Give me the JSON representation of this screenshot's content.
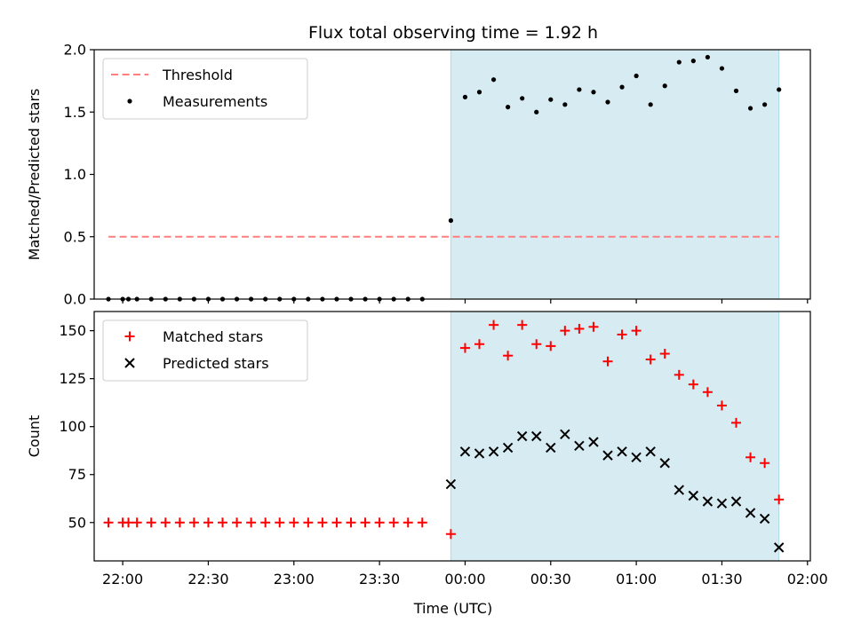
{
  "chart_data": {
    "title": "Flux total observing time = 1.92 h",
    "xlabel": "Time (UTC)",
    "x_tick_labels": [
      "22:00",
      "22:30",
      "23:00",
      "23:30",
      "00:00",
      "00:30",
      "01:00",
      "01:30",
      "02:00"
    ],
    "x_range": [
      "21:50",
      "02:01"
    ],
    "shaded_interval": {
      "start": "23:55",
      "end": "01:50",
      "color": "#add8e6"
    },
    "panels": [
      {
        "type": "scatter",
        "ylabel": "Matched/Predicted stars",
        "ylim": [
          0,
          2.0
        ],
        "y_ticks": [
          "0.0",
          "0.5",
          "1.0",
          "1.5",
          "2.0"
        ],
        "legend_position": "upper-left",
        "series": [
          {
            "name": "Threshold",
            "style": "dashed-line",
            "color": "#ff7f7f",
            "x": [
              "21:55",
              "01:50"
            ],
            "y": [
              0.5,
              0.5
            ]
          },
          {
            "name": "Measurements",
            "style": "dot",
            "color": "#000000",
            "points": [
              [
                "21:55",
                0
              ],
              [
                "22:00",
                0
              ],
              [
                "22:02",
                0
              ],
              [
                "22:05",
                0
              ],
              [
                "22:10",
                0
              ],
              [
                "22:15",
                0
              ],
              [
                "22:20",
                0
              ],
              [
                "22:25",
                0
              ],
              [
                "22:30",
                0
              ],
              [
                "22:35",
                0
              ],
              [
                "22:40",
                0
              ],
              [
                "22:45",
                0
              ],
              [
                "22:50",
                0
              ],
              [
                "22:55",
                0
              ],
              [
                "23:00",
                0
              ],
              [
                "23:05",
                0
              ],
              [
                "23:10",
                0
              ],
              [
                "23:15",
                0
              ],
              [
                "23:20",
                0
              ],
              [
                "23:25",
                0
              ],
              [
                "23:30",
                0
              ],
              [
                "23:35",
                0
              ],
              [
                "23:40",
                0
              ],
              [
                "23:45",
                0
              ],
              [
                "23:55",
                0.63
              ],
              [
                "00:00",
                1.62
              ],
              [
                "00:05",
                1.66
              ],
              [
                "00:10",
                1.76
              ],
              [
                "00:15",
                1.54
              ],
              [
                "00:20",
                1.61
              ],
              [
                "00:25",
                1.5
              ],
              [
                "00:30",
                1.6
              ],
              [
                "00:35",
                1.56
              ],
              [
                "00:40",
                1.68
              ],
              [
                "00:45",
                1.66
              ],
              [
                "00:50",
                1.58
              ],
              [
                "00:55",
                1.7
              ],
              [
                "01:00",
                1.79
              ],
              [
                "01:05",
                1.56
              ],
              [
                "01:10",
                1.71
              ],
              [
                "01:15",
                1.9
              ],
              [
                "01:20",
                1.91
              ],
              [
                "01:25",
                1.94
              ],
              [
                "01:30",
                1.85
              ],
              [
                "01:35",
                1.67
              ],
              [
                "01:40",
                1.53
              ],
              [
                "01:45",
                1.56
              ],
              [
                "01:50",
                1.68
              ]
            ]
          }
        ]
      },
      {
        "type": "scatter",
        "ylabel": "Count",
        "ylim": [
          30,
          160
        ],
        "y_ticks": [
          "50",
          "75",
          "100",
          "125",
          "150"
        ],
        "legend_position": "upper-left",
        "series": [
          {
            "name": "Matched stars",
            "style": "plus",
            "color": "#ff0000",
            "points": [
              [
                "21:55",
                50
              ],
              [
                "22:00",
                50
              ],
              [
                "22:02",
                50
              ],
              [
                "22:05",
                50
              ],
              [
                "22:10",
                50
              ],
              [
                "22:15",
                50
              ],
              [
                "22:20",
                50
              ],
              [
                "22:25",
                50
              ],
              [
                "22:30",
                50
              ],
              [
                "22:35",
                50
              ],
              [
                "22:40",
                50
              ],
              [
                "22:45",
                50
              ],
              [
                "22:50",
                50
              ],
              [
                "22:55",
                50
              ],
              [
                "23:00",
                50
              ],
              [
                "23:05",
                50
              ],
              [
                "23:10",
                50
              ],
              [
                "23:15",
                50
              ],
              [
                "23:20",
                50
              ],
              [
                "23:25",
                50
              ],
              [
                "23:30",
                50
              ],
              [
                "23:35",
                50
              ],
              [
                "23:40",
                50
              ],
              [
                "23:45",
                50
              ],
              [
                "23:55",
                44
              ],
              [
                "00:00",
                141
              ],
              [
                "00:05",
                143
              ],
              [
                "00:10",
                153
              ],
              [
                "00:15",
                137
              ],
              [
                "00:20",
                153
              ],
              [
                "00:25",
                143
              ],
              [
                "00:30",
                142
              ],
              [
                "00:35",
                150
              ],
              [
                "00:40",
                151
              ],
              [
                "00:45",
                152
              ],
              [
                "00:50",
                134
              ],
              [
                "00:55",
                148
              ],
              [
                "01:00",
                150
              ],
              [
                "01:05",
                135
              ],
              [
                "01:10",
                138
              ],
              [
                "01:15",
                127
              ],
              [
                "01:20",
                122
              ],
              [
                "01:25",
                118
              ],
              [
                "01:30",
                111
              ],
              [
                "01:35",
                102
              ],
              [
                "01:40",
                84
              ],
              [
                "01:45",
                81
              ],
              [
                "01:50",
                62
              ]
            ]
          },
          {
            "name": "Predicted stars",
            "style": "x",
            "color": "#000000",
            "points": [
              [
                "23:55",
                70
              ],
              [
                "00:00",
                87
              ],
              [
                "00:05",
                86
              ],
              [
                "00:10",
                87
              ],
              [
                "00:15",
                89
              ],
              [
                "00:20",
                95
              ],
              [
                "00:25",
                95
              ],
              [
                "00:30",
                89
              ],
              [
                "00:35",
                96
              ],
              [
                "00:40",
                90
              ],
              [
                "00:45",
                92
              ],
              [
                "00:50",
                85
              ],
              [
                "00:55",
                87
              ],
              [
                "01:00",
                84
              ],
              [
                "01:05",
                87
              ],
              [
                "01:10",
                81
              ],
              [
                "01:15",
                67
              ],
              [
                "01:20",
                64
              ],
              [
                "01:25",
                61
              ],
              [
                "01:30",
                60
              ],
              [
                "01:35",
                61
              ],
              [
                "01:40",
                55
              ],
              [
                "01:45",
                52
              ],
              [
                "01:50",
                37
              ]
            ]
          }
        ]
      }
    ]
  }
}
